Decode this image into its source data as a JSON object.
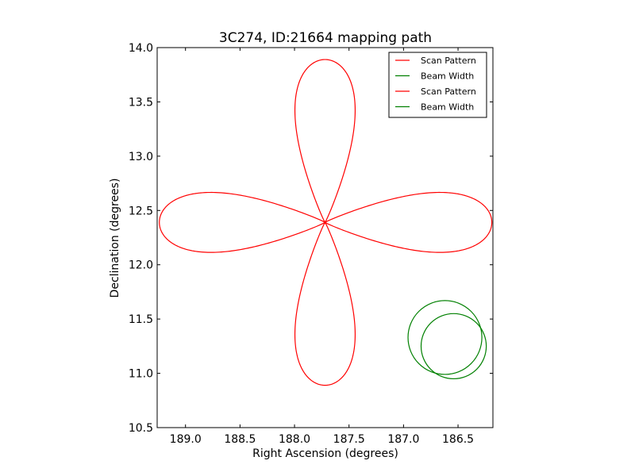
{
  "chart_data": {
    "type": "line",
    "title": "3C274, ID:21664 mapping path",
    "xlabel": "Right Ascension (degrees)",
    "ylabel": "Declination (degrees)",
    "xlim": [
      189.26,
      186.18
    ],
    "ylim": [
      10.5,
      14.0
    ],
    "x_inverted": true,
    "xticks": [
      189.0,
      188.5,
      188.0,
      187.5,
      187.0,
      186.5
    ],
    "xtick_labels": [
      "189.0",
      "188.5",
      "188.0",
      "187.5",
      "187.0",
      "186.5"
    ],
    "yticks": [
      10.5,
      11.0,
      11.5,
      12.0,
      12.5,
      13.0,
      13.5,
      14.0
    ],
    "ytick_labels": [
      "10.5",
      "11.0",
      "11.5",
      "12.0",
      "12.5",
      "13.0",
      "13.5",
      "14.0"
    ],
    "grid": false,
    "legend_position": "top-right",
    "series": [
      {
        "name": "Scan Pattern",
        "color": "#ff0000",
        "shape": "four-petal-rose",
        "center": [
          187.72,
          12.39
        ],
        "petals": [
          {
            "direction": "north",
            "tip": [
              187.72,
              13.89
            ],
            "half_width_ra": 0.41
          },
          {
            "direction": "south",
            "tip": [
              187.72,
              10.89
            ],
            "half_width_ra": 0.41
          },
          {
            "direction": "east",
            "tip": [
              189.24,
              12.39
            ],
            "half_width_dec": 0.41
          },
          {
            "direction": "west",
            "tip": [
              186.19,
              12.39
            ],
            "half_width_dec": 0.41
          }
        ]
      },
      {
        "name": "Beam Width",
        "color": "#008000",
        "shape": "circle",
        "center": [
          186.62,
          11.33
        ],
        "radius_dec": 0.34
      },
      {
        "name": "Scan Pattern",
        "color": "#ff0000",
        "shape": "legend-only"
      },
      {
        "name": "Beam Width",
        "color": "#008000",
        "shape": "circle",
        "center": [
          186.54,
          11.25
        ],
        "radius_dec": 0.3
      }
    ]
  }
}
